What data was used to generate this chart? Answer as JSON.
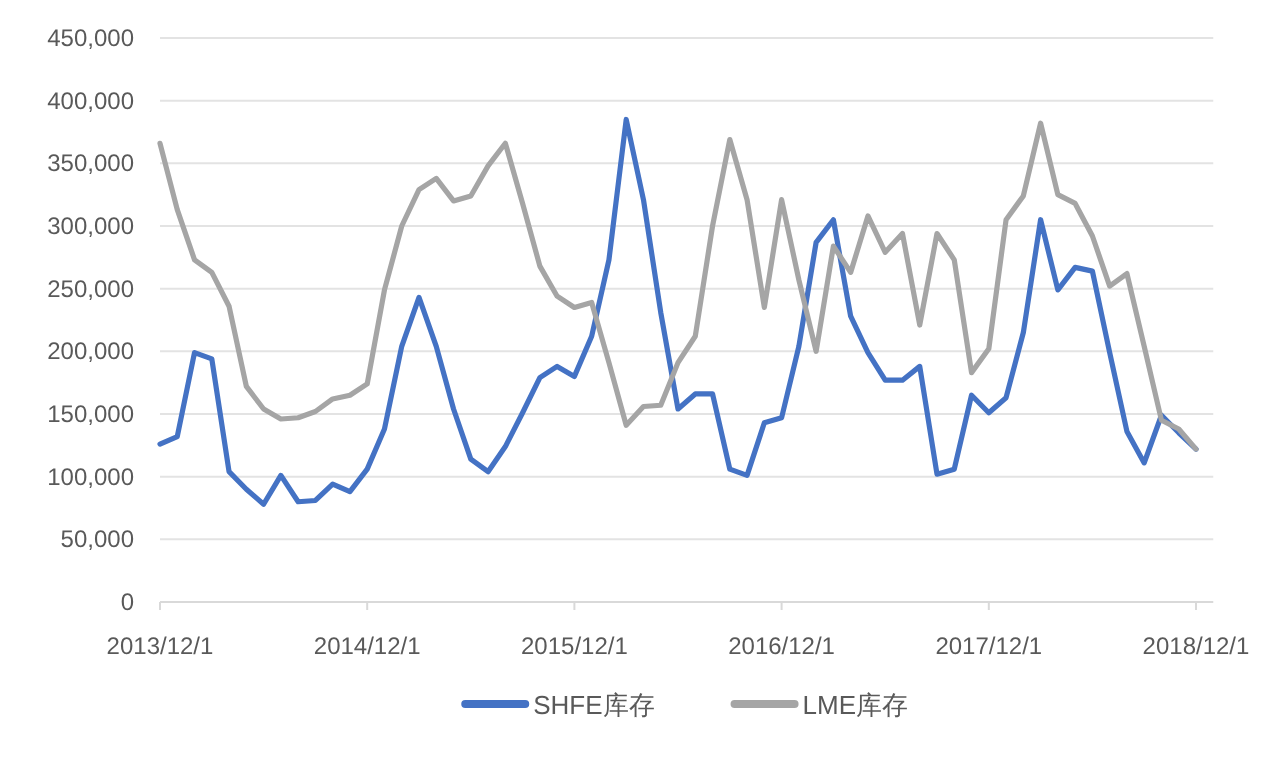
{
  "chart_data": {
    "type": "line",
    "x": [
      "2013-12",
      "2014-01",
      "2014-02",
      "2014-03",
      "2014-04",
      "2014-05",
      "2014-06",
      "2014-07",
      "2014-08",
      "2014-09",
      "2014-10",
      "2014-11",
      "2014-12",
      "2015-01",
      "2015-02",
      "2015-03",
      "2015-04",
      "2015-05",
      "2015-06",
      "2015-07",
      "2015-08",
      "2015-09",
      "2015-10",
      "2015-11",
      "2015-12",
      "2016-01",
      "2016-02",
      "2016-03",
      "2016-04",
      "2016-05",
      "2016-06",
      "2016-07",
      "2016-08",
      "2016-09",
      "2016-10",
      "2016-11",
      "2016-12",
      "2017-01",
      "2017-02",
      "2017-03",
      "2017-04",
      "2017-05",
      "2017-06",
      "2017-07",
      "2017-08",
      "2017-09",
      "2017-10",
      "2017-11",
      "2017-12",
      "2018-01",
      "2018-02",
      "2018-03",
      "2018-04",
      "2018-05",
      "2018-06",
      "2018-07",
      "2018-08",
      "2018-09",
      "2018-10",
      "2018-11",
      "2018-12"
    ],
    "series": [
      {
        "name": "SHFE库存",
        "color": "#4472c4",
        "values": [
          126000,
          132000,
          199000,
          194000,
          104000,
          90000,
          78000,
          101000,
          80000,
          81000,
          94000,
          88000,
          106000,
          138000,
          204000,
          243000,
          204000,
          154000,
          114000,
          104000,
          124000,
          151000,
          179000,
          188000,
          180000,
          212000,
          273000,
          385000,
          321000,
          231000,
          154000,
          166000,
          166000,
          106000,
          101000,
          143000,
          147000,
          204000,
          287000,
          305000,
          228000,
          199000,
          177000,
          177000,
          188000,
          102000,
          106000,
          165000,
          151000,
          163000,
          215000,
          305000,
          249000,
          267000,
          264000,
          199000,
          136000,
          111000,
          149000,
          135000,
          122000
        ]
      },
      {
        "name": "LME库存",
        "color": "#a5a5a5",
        "values": [
          366000,
          313000,
          273000,
          263000,
          236000,
          172000,
          154000,
          146000,
          147000,
          152000,
          162000,
          165000,
          174000,
          249000,
          300000,
          329000,
          338000,
          320000,
          324000,
          348000,
          366000,
          318000,
          268000,
          244000,
          235000,
          239000,
          191000,
          141000,
          156000,
          157000,
          191000,
          212000,
          300000,
          369000,
          321000,
          235000,
          321000,
          257000,
          200000,
          284000,
          263000,
          308000,
          279000,
          294000,
          221000,
          294000,
          273000,
          183000,
          202000,
          305000,
          324000,
          382000,
          325000,
          318000,
          292000,
          252000,
          262000,
          204000,
          145000,
          138000,
          122000
        ]
      }
    ],
    "xlim": [
      "2013-12-01",
      "2019-01-01"
    ],
    "xticks": [
      {
        "value": "2013-12-01",
        "label": "2013/12/1"
      },
      {
        "value": "2014-12-01",
        "label": "2014/12/1"
      },
      {
        "value": "2015-12-01",
        "label": "2015/12/1"
      },
      {
        "value": "2016-12-01",
        "label": "2016/12/1"
      },
      {
        "value": "2017-12-01",
        "label": "2017/12/1"
      },
      {
        "value": "2018-12-01",
        "label": "2018/12/1"
      }
    ],
    "ylim": [
      0,
      450000
    ],
    "yticks": [
      {
        "value": 0,
        "label": "0"
      },
      {
        "value": 50000,
        "label": "50,000"
      },
      {
        "value": 100000,
        "label": "100,000"
      },
      {
        "value": 150000,
        "label": "150,000"
      },
      {
        "value": 200000,
        "label": "200,000"
      },
      {
        "value": 250000,
        "label": "250,000"
      },
      {
        "value": 300000,
        "label": "300,000"
      },
      {
        "value": 350000,
        "label": "350,000"
      },
      {
        "value": 400000,
        "label": "400,000"
      },
      {
        "value": 450000,
        "label": "450,000"
      }
    ],
    "grid": "y",
    "legend": "bottom"
  }
}
